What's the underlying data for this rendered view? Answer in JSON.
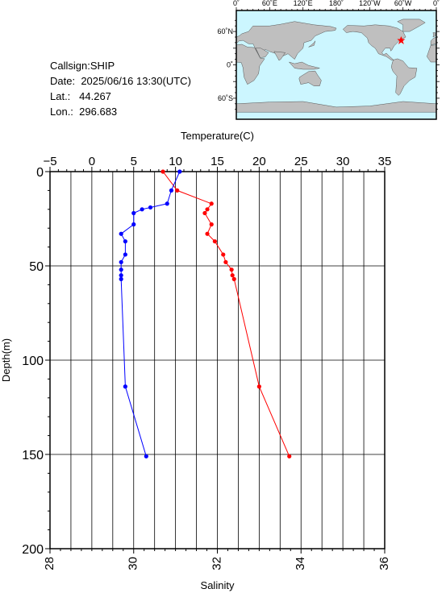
{
  "info": {
    "callsign_label": "Callsign:",
    "callsign": "SHIP",
    "date_label": "Date:",
    "date": "2025/06/16 13:30(UTC)",
    "lat_label": "Lat.:",
    "lat": "44.267",
    "lon_label": "Lon.:",
    "lon": "296.683"
  },
  "map": {
    "top_ticks": [
      "0˚",
      "60˚E",
      "120˚E",
      "180˚",
      "120˚W",
      "60˚W",
      "0˚"
    ],
    "left_ticks": [
      "60˚N",
      "0˚",
      "60˚S"
    ],
    "ocean_color": "#ccf6ff",
    "land_color": "#bfbfbf",
    "marker_color": "#ff0000",
    "marker_lat": 44.267,
    "marker_lon": 296.683
  },
  "chart_data": {
    "type": "line",
    "ylabel": "Depth(m)",
    "ylim": [
      200,
      0
    ],
    "yticks": [
      "0",
      "50",
      "100",
      "150",
      "200"
    ],
    "temperature_axis": {
      "label": "Temperature(C)",
      "range": [
        -5,
        35
      ],
      "ticks": [
        "−5",
        "0",
        "5",
        "10",
        "15",
        "20",
        "25",
        "30",
        "35"
      ]
    },
    "salinity_axis": {
      "label": "Salinity",
      "range": [
        28,
        36
      ],
      "ticks": [
        "28",
        "30",
        "32",
        "34",
        "36"
      ]
    },
    "grid": true,
    "series": [
      {
        "axis": "temperature",
        "color": "#ff0000",
        "points": [
          [
            8.5,
            0
          ],
          [
            10.2,
            10
          ],
          [
            14.3,
            17
          ],
          [
            13.8,
            20
          ],
          [
            13.5,
            22
          ],
          [
            14.3,
            28
          ],
          [
            13.8,
            33
          ],
          [
            14.7,
            37
          ],
          [
            15.7,
            44
          ],
          [
            16.0,
            48
          ],
          [
            16.7,
            52
          ],
          [
            16.8,
            55
          ],
          [
            17.0,
            57
          ],
          [
            20.0,
            114
          ],
          [
            23.6,
            151
          ]
        ]
      },
      {
        "axis": "salinity",
        "color": "#0000ff",
        "points": [
          [
            31.1,
            0
          ],
          [
            30.9,
            10
          ],
          [
            30.8,
            17
          ],
          [
            30.4,
            19
          ],
          [
            30.2,
            20
          ],
          [
            30.0,
            22
          ],
          [
            30.0,
            28
          ],
          [
            29.7,
            33
          ],
          [
            29.8,
            37
          ],
          [
            29.8,
            44
          ],
          [
            29.7,
            48
          ],
          [
            29.7,
            52
          ],
          [
            29.7,
            55
          ],
          [
            29.7,
            57
          ],
          [
            29.8,
            114
          ],
          [
            30.3,
            151
          ]
        ]
      }
    ]
  }
}
